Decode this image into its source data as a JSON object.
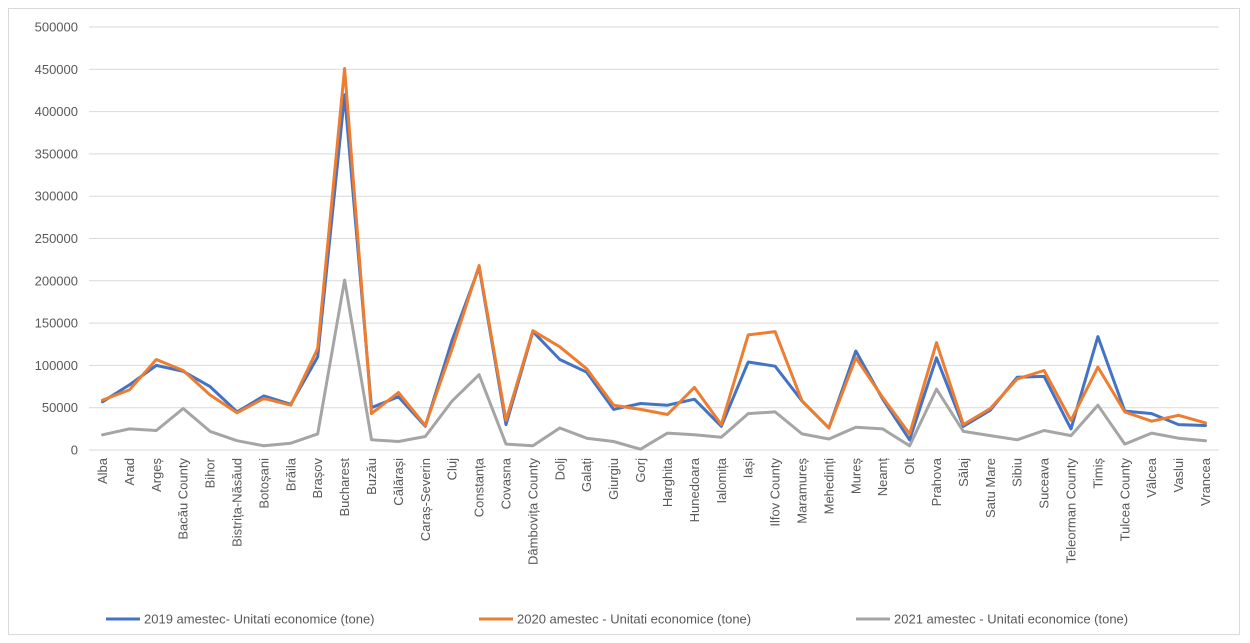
{
  "chart_data": {
    "type": "line",
    "title": "",
    "xlabel": "",
    "ylabel": "",
    "ylim": [
      0,
      500000
    ],
    "yticks": [
      0,
      50000,
      100000,
      150000,
      200000,
      250000,
      300000,
      350000,
      400000,
      450000,
      500000
    ],
    "ytick_labels": [
      "0",
      "50000",
      "100000",
      "150000",
      "200000",
      "250000",
      "300000",
      "350000",
      "400000",
      "450000",
      "500000"
    ],
    "grid": true,
    "legend_position": "bottom",
    "categories": [
      "Alba",
      "Arad",
      "Argeș",
      "Bacău County",
      "Bihor",
      "Bistrița-Năsăud",
      "Botoșani",
      "Brăila",
      "Brașov",
      "Bucharest",
      "Buzău",
      "Călărași",
      "Caraș-Severin",
      "Cluj",
      "Constanța",
      "Covasna",
      "Dâmbovița County",
      "Dolj",
      "Galați",
      "Giurgiu",
      "Gorj",
      "Harghita",
      "Hunedoara",
      "Ialomița",
      "Iași",
      "Ilfov County",
      "Maramureș",
      "Mehedinți",
      "Mureș",
      "Neamț",
      "Olt",
      "Prahova",
      "Sălaj",
      "Satu Mare",
      "Sibiu",
      "Suceava",
      "Teleorman County",
      "Timiș",
      "Tulcea County",
      "Vâlcea",
      "Vaslui",
      "Vrancea"
    ],
    "series": [
      {
        "name": "2019 amestec- Unitati economice (tone)",
        "color": "#4472c4",
        "values": [
          57000,
          77000,
          100000,
          93000,
          75000,
          45000,
          64000,
          54000,
          110000,
          420000,
          50000,
          63000,
          28000,
          130000,
          216000,
          30000,
          140000,
          107000,
          92000,
          48000,
          55000,
          53000,
          60000,
          28000,
          104000,
          99000,
          58000,
          26000,
          117000,
          60000,
          12000,
          109000,
          28000,
          47000,
          86000,
          87000,
          25000,
          134000,
          46000,
          43000,
          30000,
          29000
        ]
      },
      {
        "name": "2020 amestec - Unitati economice (tone)",
        "color": "#ed7d31",
        "values": [
          59000,
          71000,
          107000,
          94000,
          65000,
          44000,
          61000,
          53000,
          120000,
          451000,
          43000,
          68000,
          29000,
          120000,
          218000,
          35000,
          141000,
          122000,
          96000,
          53000,
          48000,
          42000,
          74000,
          30000,
          136000,
          140000,
          58000,
          26000,
          109000,
          62000,
          19000,
          127000,
          30000,
          49000,
          84000,
          94000,
          35000,
          98000,
          45000,
          34000,
          41000,
          32000
        ]
      },
      {
        "name": "2021 amestec - Unitati economice (tone)",
        "color": "#a5a5a5",
        "values": [
          18000,
          25000,
          23000,
          49000,
          22000,
          11000,
          5000,
          8000,
          19000,
          201000,
          12000,
          10000,
          16000,
          58000,
          89000,
          7000,
          5000,
          26000,
          14000,
          10000,
          1000,
          20000,
          18000,
          15000,
          43000,
          45000,
          19000,
          13000,
          27000,
          25000,
          5000,
          72000,
          22000,
          17000,
          12000,
          23000,
          17000,
          53000,
          7000,
          20000,
          14000,
          11000
        ]
      }
    ]
  }
}
